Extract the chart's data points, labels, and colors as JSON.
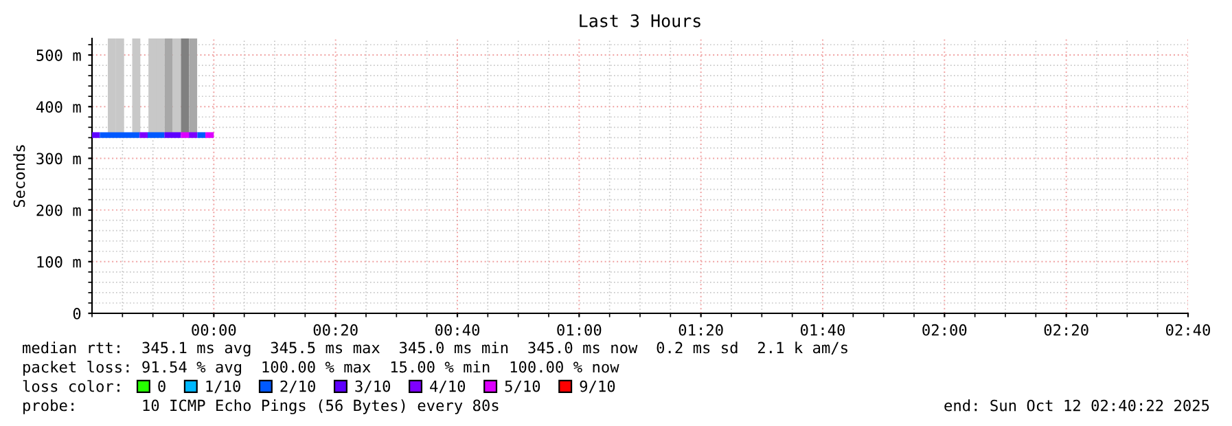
{
  "chart_data": {
    "type": "line",
    "title": "Last 3 Hours",
    "ylabel": "Seconds",
    "xlim": [
      "2025-10-11T23:40",
      "2025-10-12T02:40"
    ],
    "ylim": [
      0,
      532
    ],
    "xticks": [
      {
        "value": "2025-10-12T00:00",
        "label": "00:00"
      },
      {
        "value": "2025-10-12T00:20",
        "label": "00:20"
      },
      {
        "value": "2025-10-12T00:40",
        "label": "00:40"
      },
      {
        "value": "2025-10-12T01:00",
        "label": "01:00"
      },
      {
        "value": "2025-10-12T01:20",
        "label": "01:20"
      },
      {
        "value": "2025-10-12T01:40",
        "label": "01:40"
      },
      {
        "value": "2025-10-12T02:00",
        "label": "02:00"
      },
      {
        "value": "2025-10-12T02:20",
        "label": "02:20"
      },
      {
        "value": "2025-10-12T02:40",
        "label": "02:40"
      }
    ],
    "yticks": [
      0,
      {
        "value": 100,
        "label": "100 m"
      },
      {
        "value": 200,
        "label": "200 m"
      },
      {
        "value": 300,
        "label": "300 m"
      },
      {
        "value": 400,
        "label": "400 m"
      },
      {
        "value": 500,
        "label": "500 m"
      }
    ],
    "grid": true,
    "legend": "bottom",
    "series": [
      {
        "type": "bar",
        "x": [
          "2025-10-11T23:43:16",
          "2025-10-11T23:44:36",
          "2025-10-11T23:45:56",
          "2025-10-11T23:47:16",
          "2025-10-11T23:48:36",
          "2025-10-11T23:49:56",
          "2025-10-11T23:51:16",
          "2025-10-11T23:52:36",
          "2025-10-11T23:53:56",
          "2025-10-11T23:55:16",
          "2025-10-11T23:56:36"
        ],
        "values": [
          187,
          187,
          null,
          187,
          null,
          187,
          187,
          187,
          187,
          187,
          187
        ],
        "base": [
          345,
          345,
          null,
          345,
          null,
          345,
          345,
          345,
          345,
          345,
          345
        ],
        "colors": [
          "#c8c8c8",
          "#c8c8c8",
          "#c8c8c8",
          "#c8c8c8",
          "#c8c8c8",
          "#c8c8c8",
          "#c8c8c8",
          "#a8a8a8",
          "#c8c8c8",
          "#808080",
          "#a8a8a8"
        ]
      },
      {
        "x": [
          "2025-10-11T23:40:00",
          "2025-10-11T23:41:17"
        ],
        "values": [
          345,
          345
        ],
        "color": "#5e00ff"
      },
      {
        "x": [
          "2025-10-11T23:41:17",
          "2025-10-11T23:47:49"
        ],
        "values": [
          345,
          345
        ],
        "color": "#0059ff"
      },
      {
        "x": [
          "2025-10-11T23:47:49",
          "2025-10-11T23:49:08"
        ],
        "values": [
          345,
          345
        ],
        "color": "#7e00ff"
      },
      {
        "x": [
          "2025-10-11T23:49:08",
          "2025-10-11T23:51:54"
        ],
        "values": [
          345,
          345
        ],
        "color": "#0059ff"
      },
      {
        "x": [
          "2025-10-11T23:51:54",
          "2025-10-11T23:54:36"
        ],
        "values": [
          345,
          345
        ],
        "color": "#5e00ff"
      },
      {
        "x": [
          "2025-10-11T23:54:36",
          "2025-10-11T23:55:55"
        ],
        "values": [
          345,
          345
        ],
        "color": "#dd00ff"
      },
      {
        "x": [
          "2025-10-11T23:55:55",
          "2025-10-11T23:57:18"
        ],
        "values": [
          345,
          345
        ],
        "color": "#7e00ff"
      },
      {
        "x": [
          "2025-10-11T23:57:18",
          "2025-10-11T23:58:37"
        ],
        "values": [
          345,
          345
        ],
        "color": "#0059ff"
      },
      {
        "x": [
          "2025-10-11T23:58:37",
          "2025-10-12T00:00:00"
        ],
        "values": [
          345,
          345
        ],
        "color": "#dd00ff"
      },
      {
        "name": "0",
        "color": "#26ff00"
      },
      {
        "name": "1/10",
        "color": "#00b8ff"
      },
      {
        "name": "2/10",
        "color": "#0059ff"
      },
      {
        "name": "3/10",
        "color": "#5e00ff"
      },
      {
        "name": "4/10",
        "color": "#7e00ff"
      },
      {
        "name": "5/10",
        "color": "#dd00ff"
      },
      {
        "name": "9/10",
        "color": "#ff0000"
      }
    ],
    "annotations": [
      "median rtt:  345.1 ms avg  345.5 ms max  345.0 ms min  345.0 ms now  0.2 ms sd  2.1 k am/s",
      "packet loss: 91.54 % avg  100.00 % max  15.00 % min  100.00 % now",
      "loss color:",
      "probe:       10 ICMP Echo Pings (56 Bytes) every 80s",
      "end: Sun Oct 12 02:40:22 2025"
    ]
  }
}
